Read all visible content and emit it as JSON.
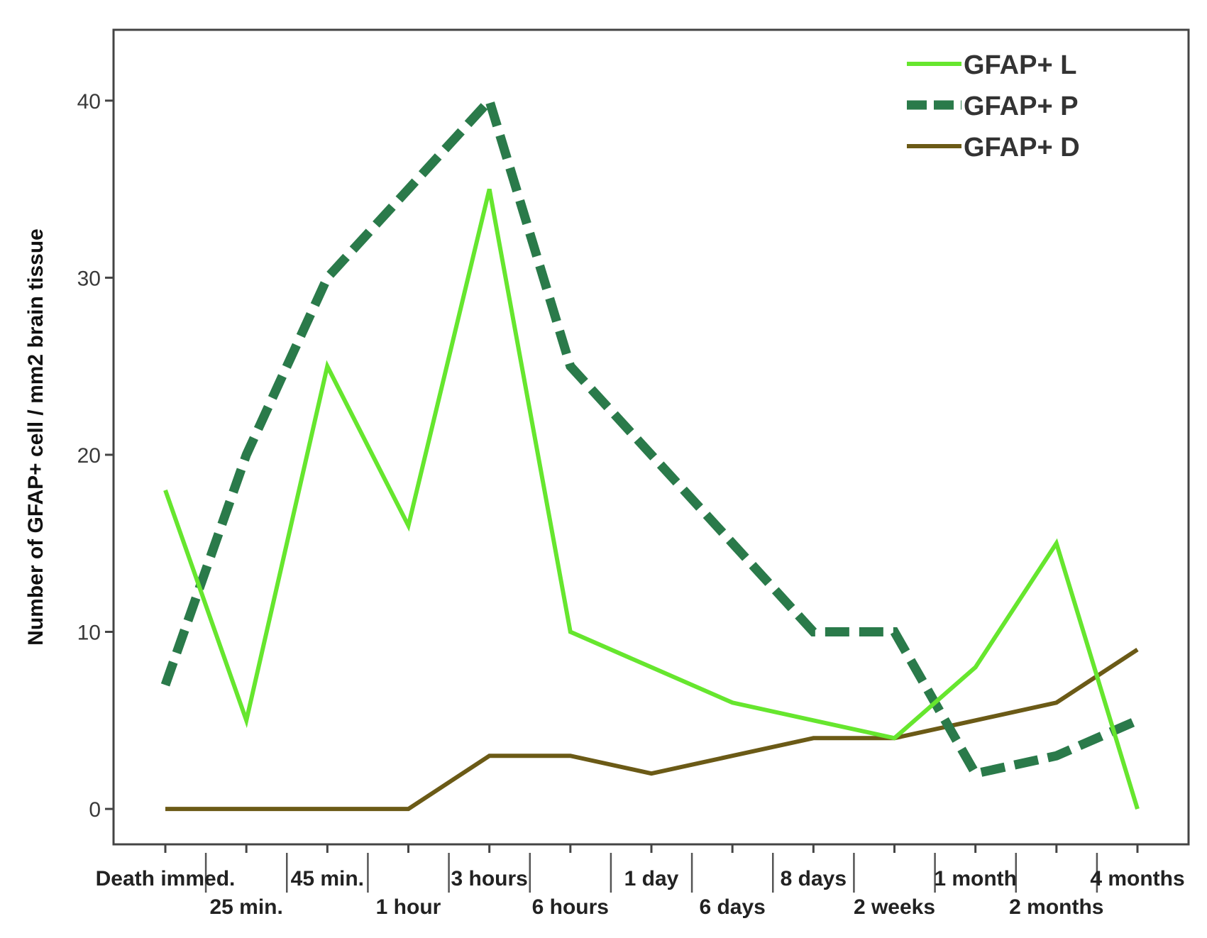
{
  "chart_data": {
    "type": "line",
    "ylabel": "Number of GFAP+ cell / mm2 brain tissue",
    "xlabel": "",
    "ylim": [
      -2,
      44
    ],
    "yticks": [
      "0",
      "10",
      "20",
      "30",
      "40"
    ],
    "categories": [
      "Death immed.",
      "25 min.",
      "45 min.",
      "1 hour",
      "3 hours",
      "6 hours",
      "1 day",
      "6 days",
      "8 days",
      "2 weeks",
      "1 month",
      "2 months",
      "4 months"
    ],
    "series": [
      {
        "name": "GFAP+ L",
        "color": "#66e62e",
        "style": "solid",
        "values": [
          18,
          5,
          25,
          16,
          35,
          10,
          8,
          6,
          5,
          4,
          8,
          15,
          0
        ]
      },
      {
        "name": "GFAP+ P",
        "color": "#2a7a4a",
        "style": "dashed",
        "values": [
          7,
          20,
          30,
          35,
          40,
          25,
          20,
          15,
          10,
          10,
          2,
          3,
          5
        ]
      },
      {
        "name": "GFAP+ D",
        "color": "#6b5a16",
        "style": "solid",
        "values": [
          0,
          0,
          0,
          0,
          3,
          3,
          2,
          3,
          4,
          4,
          5,
          6,
          9
        ]
      }
    ],
    "legend_position": "top-right",
    "grid": false
  }
}
